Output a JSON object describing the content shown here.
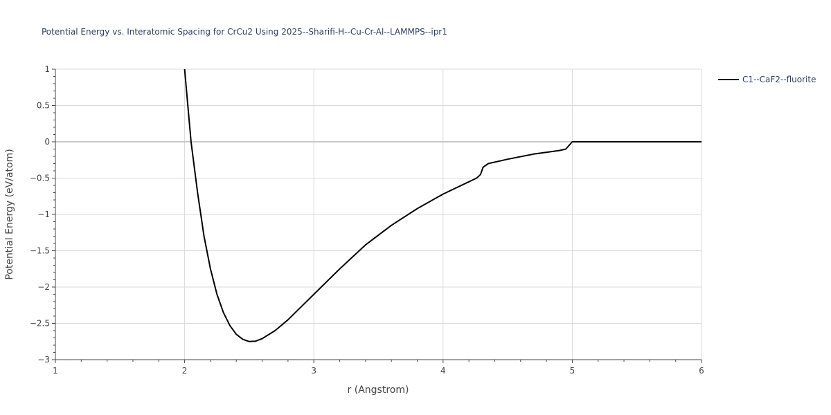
{
  "chart_data": {
    "type": "line",
    "title": "Potential Energy vs. Interatomic Spacing for CrCu2 Using 2025--Sharifi-H--Cu-Cr-Al--LAMMPS--ipr1",
    "xlabel": "r (Angstrom)",
    "ylabel": "Potential Energy (eV/atom)",
    "xlim": [
      1,
      6
    ],
    "ylim": [
      -3,
      1
    ],
    "x_ticks": [
      1,
      2,
      3,
      4,
      5,
      6
    ],
    "x_tick_labels": [
      "1",
      "2",
      "3",
      "4",
      "5",
      "6"
    ],
    "y_ticks": [
      1,
      0.5,
      0,
      -0.5,
      -1,
      -1.5,
      -2,
      -2.5,
      -3
    ],
    "y_tick_labels": [
      "1",
      "0.5",
      "0",
      "−0.5",
      "−1",
      "−1.5",
      "−2",
      "−2.5",
      "−3"
    ],
    "grid": true,
    "legend_position": "top-right",
    "series": [
      {
        "name": "C1--CaF2--fluorite",
        "color": "#000000",
        "x": [
          2.0,
          2.02,
          2.05,
          2.1,
          2.15,
          2.2,
          2.25,
          2.3,
          2.35,
          2.4,
          2.45,
          2.5,
          2.55,
          2.6,
          2.7,
          2.8,
          3.0,
          3.2,
          3.4,
          3.6,
          3.8,
          4.0,
          4.2,
          4.26,
          4.29,
          4.31,
          4.35,
          4.5,
          4.7,
          4.9,
          4.95,
          5.0,
          6.0
        ],
        "y": [
          1.0,
          0.6,
          0.0,
          -0.7,
          -1.3,
          -1.75,
          -2.1,
          -2.35,
          -2.53,
          -2.65,
          -2.72,
          -2.75,
          -2.745,
          -2.71,
          -2.6,
          -2.45,
          -2.1,
          -1.75,
          -1.42,
          -1.15,
          -0.92,
          -0.72,
          -0.55,
          -0.5,
          -0.45,
          -0.35,
          -0.3,
          -0.24,
          -0.17,
          -0.12,
          -0.1,
          0.0,
          0.0
        ]
      }
    ]
  }
}
